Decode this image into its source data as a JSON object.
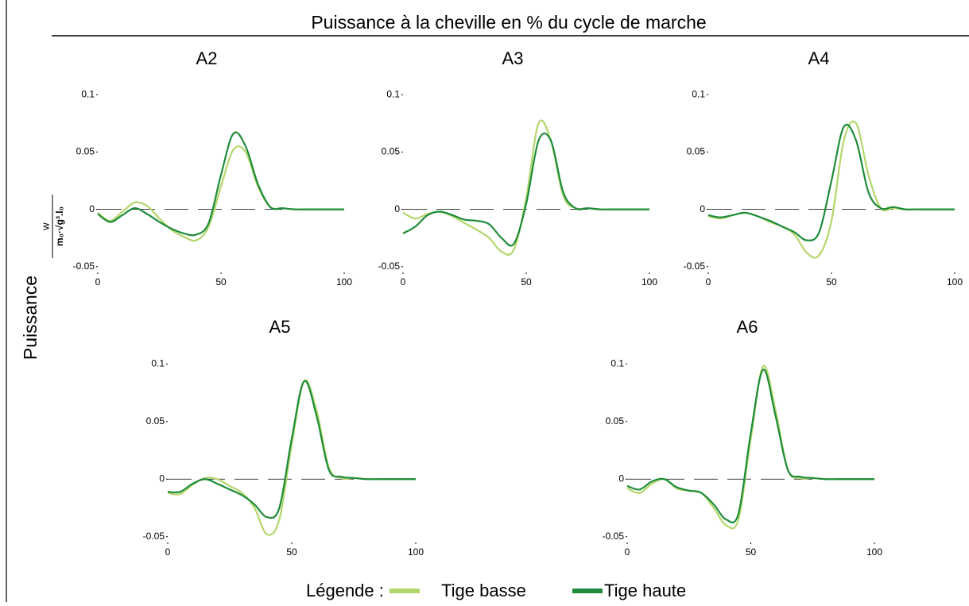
{
  "title": "Puissance à la cheville en % du cycle de marche",
  "ylabel": "Puissance",
  "ylabel_unit": {
    "numerator": "w",
    "denominator": "m₀·√g³.l₀"
  },
  "legend": {
    "label": "Légende :",
    "items": [
      {
        "name": "Tige basse",
        "color": "#b3d66b"
      },
      {
        "name": "Tige haute",
        "color": "#1e8c3a"
      }
    ]
  },
  "chart_data": [
    {
      "type": "line",
      "title": "A2",
      "x": [
        0,
        5,
        10,
        15,
        20,
        25,
        30,
        35,
        40,
        45,
        50,
        55,
        60,
        65,
        70,
        75,
        80,
        85,
        90,
        95,
        100
      ],
      "series": [
        {
          "values": [
            -0.003,
            -0.01,
            -0.002,
            0.006,
            0.003,
            -0.008,
            -0.018,
            -0.024,
            -0.027,
            -0.015,
            0.02,
            0.052,
            0.05,
            0.02,
            0.002,
            0.001,
            0,
            0,
            0,
            0,
            0
          ]
        },
        {
          "values": [
            -0.004,
            -0.011,
            -0.005,
            0.001,
            -0.004,
            -0.011,
            -0.017,
            -0.021,
            -0.022,
            -0.012,
            0.03,
            0.066,
            0.055,
            0.022,
            0.002,
            0.001,
            0,
            0,
            0,
            0,
            0
          ]
        }
      ],
      "xlim": [
        0,
        100
      ],
      "xticks": [
        0,
        50,
        100
      ],
      "ylim": [
        -0.055,
        0.105
      ],
      "yticks": [
        -0.05,
        0,
        0.05,
        0.1
      ]
    },
    {
      "type": "line",
      "title": "A3",
      "x": [
        0,
        5,
        10,
        15,
        20,
        25,
        30,
        35,
        40,
        45,
        50,
        55,
        60,
        65,
        70,
        75,
        80,
        85,
        90,
        95,
        100
      ],
      "series": [
        {
          "values": [
            -0.003,
            -0.008,
            -0.004,
            -0.002,
            -0.006,
            -0.012,
            -0.018,
            -0.025,
            -0.037,
            -0.035,
            0.01,
            0.075,
            0.06,
            0.012,
            0.001,
            0.001,
            0,
            0,
            0,
            0,
            0
          ]
        },
        {
          "values": [
            -0.021,
            -0.015,
            -0.005,
            -0.002,
            -0.005,
            -0.009,
            -0.01,
            -0.013,
            -0.025,
            -0.03,
            0.005,
            0.06,
            0.06,
            0.015,
            0.001,
            0.001,
            0,
            0,
            0,
            0,
            0
          ]
        }
      ],
      "xlim": [
        0,
        100
      ],
      "xticks": [
        0,
        50,
        100
      ],
      "ylim": [
        -0.055,
        0.105
      ],
      "yticks": [
        -0.05,
        0,
        0.05,
        0.1
      ]
    },
    {
      "type": "line",
      "title": "A4",
      "x": [
        0,
        5,
        10,
        15,
        20,
        25,
        30,
        35,
        40,
        45,
        50,
        55,
        60,
        65,
        70,
        75,
        80,
        85,
        90,
        95,
        100
      ],
      "series": [
        {
          "values": [
            -0.006,
            -0.008,
            -0.005,
            -0.003,
            -0.006,
            -0.011,
            -0.015,
            -0.022,
            -0.038,
            -0.04,
            -0.01,
            0.06,
            0.075,
            0.03,
            0.001,
            0.001,
            0,
            0,
            0,
            0,
            0
          ]
        },
        {
          "values": [
            -0.005,
            -0.007,
            -0.005,
            -0.003,
            -0.006,
            -0.01,
            -0.015,
            -0.02,
            -0.027,
            -0.02,
            0.025,
            0.072,
            0.06,
            0.015,
            0.001,
            0.002,
            0,
            0,
            0,
            0,
            0
          ]
        }
      ],
      "xlim": [
        0,
        100
      ],
      "xticks": [
        0,
        50,
        100
      ],
      "ylim": [
        -0.055,
        0.105
      ],
      "yticks": [
        -0.05,
        0,
        0.05,
        0.1
      ]
    },
    {
      "type": "line",
      "title": "A5",
      "x": [
        0,
        5,
        10,
        15,
        20,
        25,
        30,
        35,
        40,
        45,
        50,
        55,
        60,
        65,
        70,
        75,
        80,
        85,
        90,
        95,
        100
      ],
      "series": [
        {
          "values": [
            -0.012,
            -0.013,
            -0.005,
            0.001,
            0,
            -0.006,
            -0.012,
            -0.025,
            -0.048,
            -0.035,
            0.03,
            0.085,
            0.06,
            0.01,
            0.001,
            0.001,
            0,
            0,
            0,
            0,
            0
          ]
        },
        {
          "values": [
            -0.011,
            -0.011,
            -0.004,
            0,
            -0.004,
            -0.009,
            -0.014,
            -0.022,
            -0.033,
            -0.025,
            0.035,
            0.085,
            0.055,
            0.008,
            0.002,
            0.001,
            0,
            0,
            0,
            0,
            0
          ]
        }
      ],
      "xlim": [
        0,
        100
      ],
      "xticks": [
        0,
        50,
        100
      ],
      "ylim": [
        -0.055,
        0.105
      ],
      "yticks": [
        -0.05,
        0,
        0.05,
        0.1
      ]
    },
    {
      "type": "line",
      "title": "A6",
      "x": [
        0,
        5,
        10,
        15,
        20,
        25,
        30,
        35,
        40,
        45,
        50,
        55,
        60,
        65,
        70,
        75,
        80,
        85,
        90,
        95,
        100
      ],
      "series": [
        {
          "values": [
            -0.008,
            -0.012,
            -0.004,
            0,
            -0.008,
            -0.01,
            -0.012,
            -0.025,
            -0.04,
            -0.035,
            0.035,
            0.098,
            0.06,
            0.008,
            0.001,
            0.001,
            0,
            0,
            0,
            0,
            0
          ]
        },
        {
          "values": [
            -0.006,
            -0.009,
            -0.002,
            0,
            -0.007,
            -0.01,
            -0.012,
            -0.022,
            -0.035,
            -0.03,
            0.04,
            0.095,
            0.055,
            0.008,
            0.002,
            0.001,
            0,
            0,
            0,
            0,
            0
          ]
        }
      ],
      "xlim": [
        0,
        100
      ],
      "xticks": [
        0,
        50,
        100
      ],
      "ylim": [
        -0.055,
        0.105
      ],
      "yticks": [
        -0.05,
        0,
        0.05,
        0.1
      ]
    }
  ]
}
